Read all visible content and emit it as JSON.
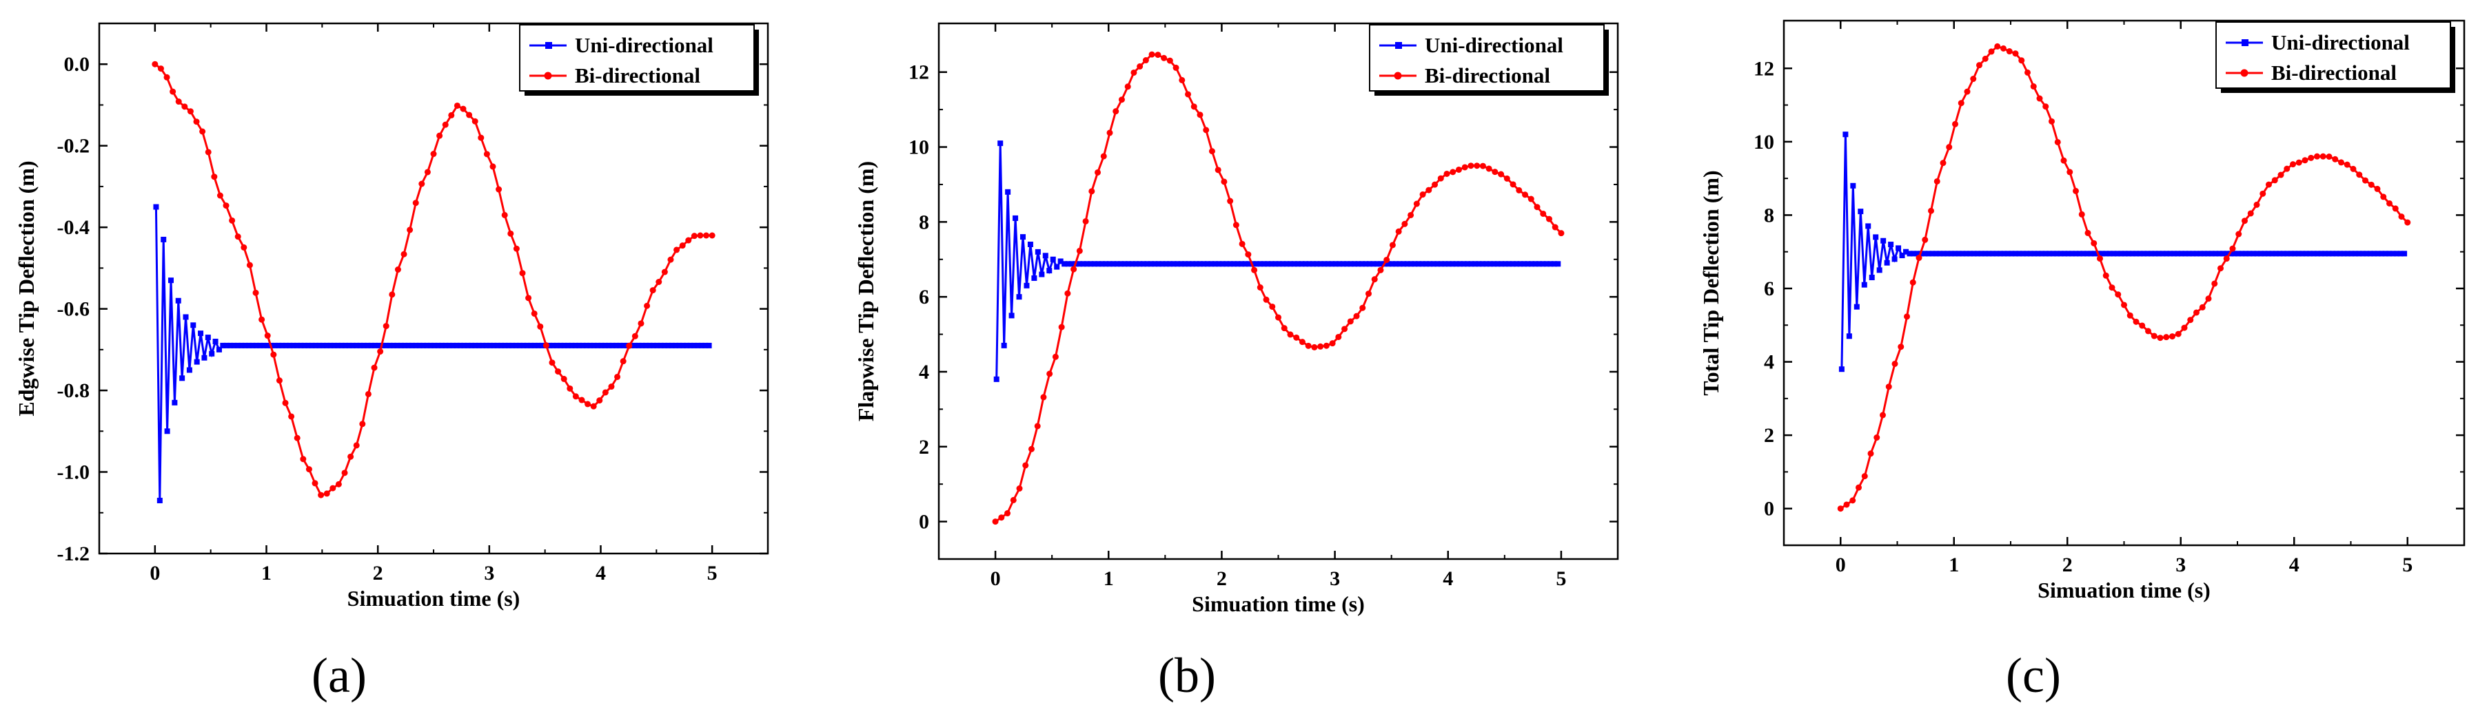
{
  "panel_labels": [
    "(a)",
    "(b)",
    "(c)"
  ],
  "chart_data": [
    {
      "type": "line",
      "panel": "(a)",
      "title": "",
      "xlabel": "Simuation time (s)",
      "ylabel": "Edgwise Tip Deflection (m)",
      "xlim": [
        -0.5,
        5.5
      ],
      "ylim": [
        -1.2,
        0.1
      ],
      "xticks": [
        0,
        1,
        2,
        3,
        4,
        5
      ],
      "xtick_labels": [
        "0",
        "1",
        "2",
        "3",
        "4",
        "5"
      ],
      "yticks": [
        -1.2,
        -1.0,
        -0.8,
        -0.6,
        -0.4,
        -0.2,
        0.0
      ],
      "ytick_labels": [
        "-1.2",
        "-1.0",
        "-0.8",
        "-0.6",
        "-0.4",
        "-0.2",
        "0.0"
      ],
      "legend_position": "top-right",
      "legend": [
        "Uni-directional",
        "Bi-directional"
      ],
      "series": [
        {
          "name": "Uni-directional",
          "color": "#0000ff",
          "marker": "square",
          "model": "damped-step",
          "t_end": 5,
          "initial_values": [
            -0.35,
            -1.07,
            -0.43,
            -0.9,
            -0.53,
            -0.83,
            -0.58,
            -0.77,
            -0.62,
            -0.75,
            -0.64,
            -0.73,
            -0.66,
            -0.72,
            -0.67,
            -0.71,
            -0.68,
            -0.7
          ],
          "steady_value": -0.69
        },
        {
          "name": "Bi-directional",
          "color": "#ff0000",
          "marker": "circle",
          "model": "keypoints",
          "x": [
            0,
            0.05,
            0.1,
            0.2,
            0.3,
            0.4,
            0.6,
            0.8,
            1.0,
            1.2,
            1.35,
            1.5,
            1.65,
            1.8,
            2.0,
            2.2,
            2.4,
            2.6,
            2.72,
            2.85,
            3.0,
            3.2,
            3.4,
            3.6,
            3.8,
            3.93,
            4.1,
            4.3,
            4.5,
            4.7,
            4.85,
            5.0
          ],
          "values": [
            0.0,
            -0.01,
            -0.03,
            -0.09,
            -0.11,
            -0.15,
            -0.33,
            -0.45,
            -0.66,
            -0.85,
            -0.98,
            -1.06,
            -1.03,
            -0.94,
            -0.72,
            -0.49,
            -0.29,
            -0.15,
            -0.1,
            -0.13,
            -0.23,
            -0.42,
            -0.61,
            -0.75,
            -0.82,
            -0.84,
            -0.79,
            -0.67,
            -0.54,
            -0.45,
            -0.42,
            -0.42
          ],
          "points": 95
        }
      ]
    },
    {
      "type": "line",
      "panel": "(b)",
      "title": "",
      "xlabel": "Simuation time (s)",
      "ylabel": "Flapwise Tip Deflection (m)",
      "xlim": [
        -0.5,
        5.5
      ],
      "ylim": [
        -1,
        13.3
      ],
      "xticks": [
        0,
        1,
        2,
        3,
        4,
        5
      ],
      "xtick_labels": [
        "0",
        "1",
        "2",
        "3",
        "4",
        "5"
      ],
      "yticks": [
        0,
        2,
        4,
        6,
        8,
        10,
        12
      ],
      "ytick_labels": [
        "0",
        "2",
        "4",
        "6",
        "8",
        "10",
        "12"
      ],
      "legend_position": "top-right",
      "legend": [
        "Uni-directional",
        "Bi-directional"
      ],
      "series": [
        {
          "name": "Uni-directional",
          "color": "#0000ff",
          "marker": "square",
          "model": "damped-step",
          "t_end": 5,
          "initial_values": [
            3.8,
            10.1,
            4.7,
            8.8,
            5.5,
            8.1,
            6.0,
            7.6,
            6.3,
            7.4,
            6.5,
            7.2,
            6.6,
            7.1,
            6.7,
            7.0,
            6.8,
            6.95
          ],
          "steady_value": 6.88
        },
        {
          "name": "Bi-directional",
          "color": "#ff0000",
          "marker": "circle",
          "model": "keypoints",
          "x": [
            0,
            0.1,
            0.2,
            0.3,
            0.5,
            0.7,
            0.9,
            1.1,
            1.25,
            1.4,
            1.55,
            1.8,
            2.0,
            2.2,
            2.4,
            2.6,
            2.8,
            2.95,
            3.2,
            3.4,
            3.6,
            3.8,
            4.0,
            4.2,
            4.3,
            4.45,
            4.7,
            4.85,
            5.0
          ],
          "values": [
            0.0,
            0.2,
            0.8,
            1.8,
            4.1,
            6.8,
            9.3,
            11.2,
            12.1,
            12.5,
            12.3,
            10.9,
            9.2,
            7.3,
            5.9,
            5.0,
            4.65,
            4.7,
            5.5,
            6.7,
            7.9,
            8.8,
            9.3,
            9.5,
            9.5,
            9.3,
            8.7,
            8.2,
            7.7
          ],
          "points": 95
        }
      ]
    },
    {
      "type": "line",
      "panel": "(c)",
      "title": "",
      "xlabel": "Simuation time (s)",
      "ylabel": "Total Tip Deflection (m)",
      "xlim": [
        -0.5,
        5.5
      ],
      "ylim": [
        -1,
        13.3
      ],
      "xticks": [
        0,
        1,
        2,
        3,
        4,
        5
      ],
      "xtick_labels": [
        "0",
        "1",
        "2",
        "3",
        "4",
        "5"
      ],
      "yticks": [
        0,
        2,
        4,
        6,
        8,
        10,
        12
      ],
      "ytick_labels": [
        "0",
        "2",
        "4",
        "6",
        "8",
        "10",
        "12"
      ],
      "legend_position": "top-right",
      "legend": [
        "Uni-directional",
        "Bi-directional"
      ],
      "series": [
        {
          "name": "Uni-directional",
          "color": "#0000ff",
          "marker": "square",
          "model": "damped-step",
          "t_end": 5,
          "initial_values": [
            3.8,
            10.2,
            4.7,
            8.8,
            5.5,
            8.1,
            6.1,
            7.7,
            6.3,
            7.4,
            6.5,
            7.3,
            6.7,
            7.2,
            6.8,
            7.1,
            6.9,
            7.0
          ],
          "steady_value": 6.95
        },
        {
          "name": "Bi-directional",
          "color": "#ff0000",
          "marker": "circle",
          "model": "keypoints",
          "x": [
            0,
            0.1,
            0.2,
            0.3,
            0.5,
            0.7,
            0.9,
            1.1,
            1.25,
            1.38,
            1.55,
            1.8,
            2.0,
            2.2,
            2.4,
            2.6,
            2.8,
            2.95,
            3.2,
            3.4,
            3.6,
            3.8,
            4.0,
            4.2,
            4.3,
            4.45,
            4.7,
            4.85,
            5.0
          ],
          "values": [
            0.0,
            0.2,
            0.8,
            1.8,
            4.1,
            6.9,
            9.4,
            11.3,
            12.2,
            12.6,
            12.4,
            11.0,
            9.3,
            7.4,
            6.0,
            5.1,
            4.65,
            4.7,
            5.5,
            6.8,
            8.0,
            8.9,
            9.4,
            9.6,
            9.6,
            9.4,
            8.8,
            8.3,
            7.8
          ],
          "points": 95
        }
      ]
    }
  ]
}
